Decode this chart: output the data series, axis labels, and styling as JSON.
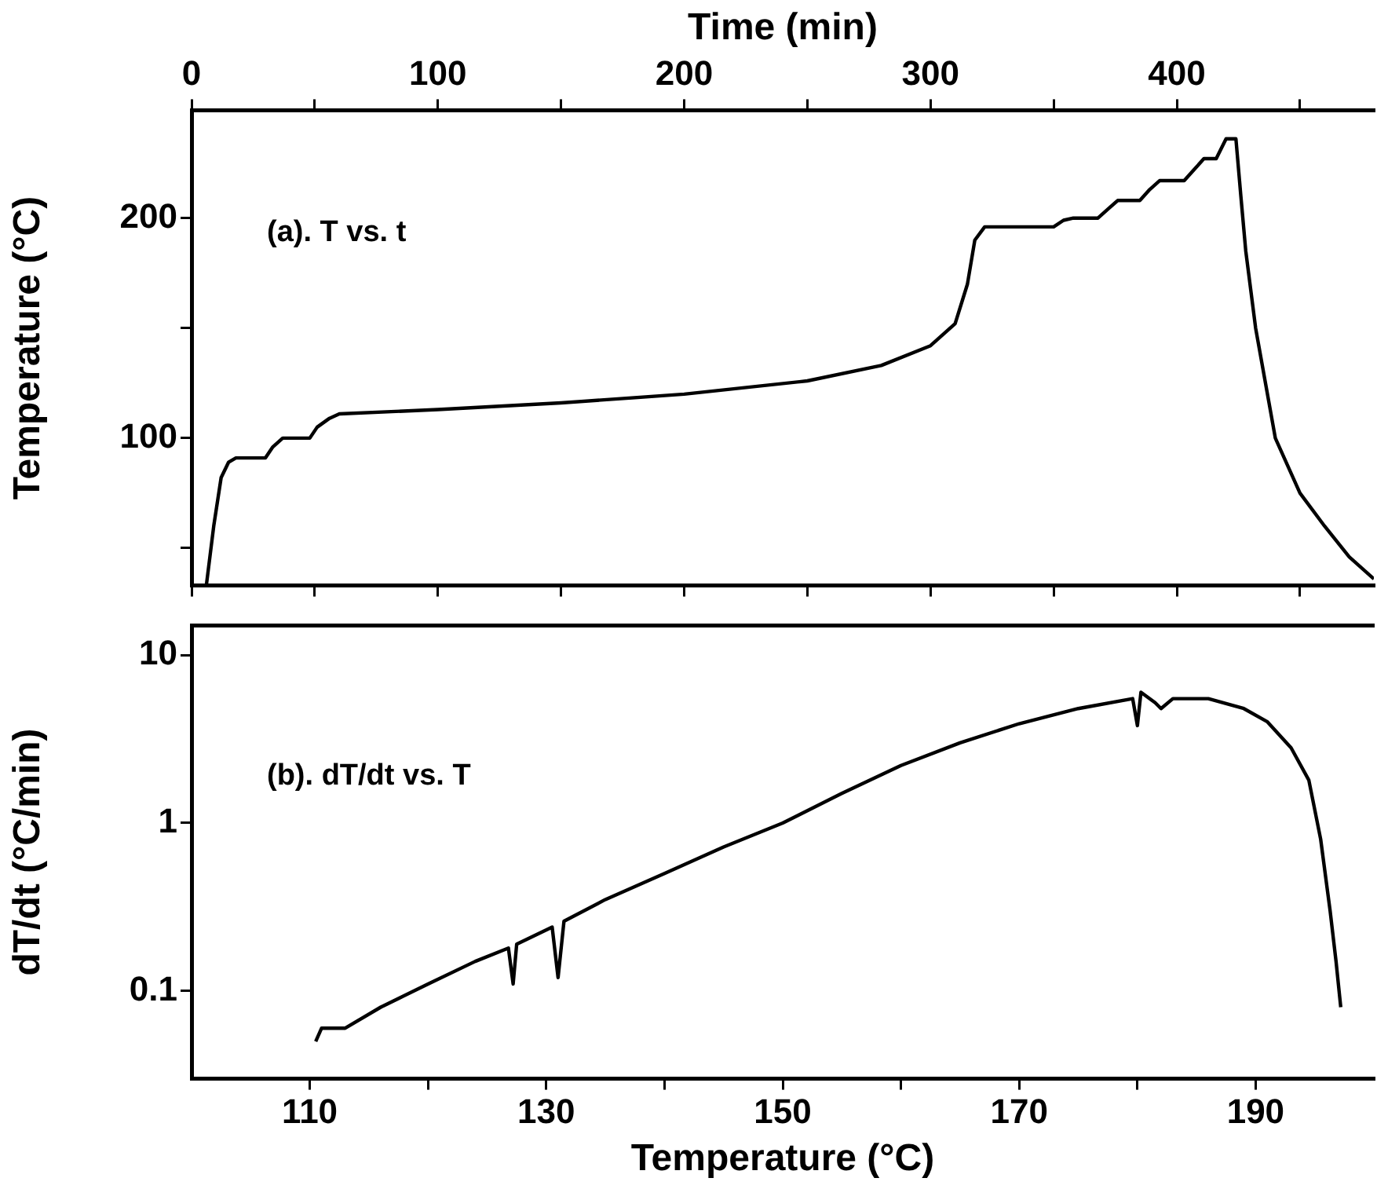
{
  "chart_data": [
    {
      "type": "line",
      "xlabel": "Time (min)",
      "ylabel": "Temperature (°C)",
      "annotations": [
        "(a). T vs. t"
      ],
      "xlim": [
        0,
        480
      ],
      "xticks": [
        0,
        {
          "value": 50,
          "label": null
        },
        100,
        {
          "value": 150,
          "label": null
        },
        200,
        {
          "value": 250,
          "label": null
        },
        300,
        {
          "value": 350,
          "label": null
        },
        400,
        {
          "value": 450,
          "label": null
        }
      ],
      "ylim": [
        33,
        249
      ],
      "yticks": [
        {
          "value": 50,
          "label": null
        },
        100,
        {
          "value": 150,
          "label": null
        },
        200
      ],
      "grid": false,
      "legend": false,
      "marker": "none",
      "line_style": "solid",
      "series": [
        {
          "color": "#000000",
          "x": [
            6,
            9,
            12,
            15,
            18,
            30,
            33,
            37,
            48,
            51,
            56,
            60,
            100,
            150,
            200,
            250,
            280,
            300,
            310,
            315,
            318,
            322,
            350,
            354,
            358,
            368,
            372,
            376,
            385,
            389,
            393,
            403,
            407,
            411,
            416,
            420,
            424,
            426,
            428,
            432,
            440,
            450,
            460,
            470,
            480
          ],
          "values": [
            33,
            60,
            82,
            89,
            91,
            91,
            96,
            100,
            100,
            105,
            109,
            111,
            113,
            116,
            120,
            126,
            133,
            142,
            152,
            170,
            190,
            196,
            196,
            199,
            200,
            200,
            204,
            208,
            208,
            213,
            217,
            217,
            222,
            227,
            227,
            236,
            236,
            210,
            185,
            150,
            100,
            75,
            60,
            46,
            36
          ]
        }
      ]
    },
    {
      "type": "line",
      "xlabel": "Temperature (°C)",
      "ylabel": "dT/dt (°C/min)",
      "annotations": [
        "(b). dT/dt vs. T"
      ],
      "log": "y",
      "xlim": [
        100,
        200
      ],
      "xticks": [
        110,
        {
          "value": 120,
          "label": null
        },
        130,
        {
          "value": 140,
          "label": null
        },
        150,
        {
          "value": 160,
          "label": null
        },
        170,
        {
          "value": 180,
          "label": null
        },
        190
      ],
      "ylim": [
        0.03,
        15
      ],
      "yticks": [
        0.1,
        1,
        10
      ],
      "grid": false,
      "legend": false,
      "marker": "none",
      "line_style": "solid",
      "series": [
        {
          "color": "#000000",
          "x": [
            110.5,
            111,
            113,
            116,
            120,
            124,
            126.8,
            127.2,
            127.5,
            130.5,
            131,
            131.5,
            135,
            140,
            145,
            150,
            155,
            160,
            165,
            170,
            175,
            179.6,
            180,
            180.3,
            181.5,
            182,
            183,
            186,
            189,
            191,
            193,
            194.5,
            195.5,
            196.3,
            196.8,
            197.2
          ],
          "values": [
            0.05,
            0.06,
            0.06,
            0.08,
            0.11,
            0.15,
            0.18,
            0.11,
            0.19,
            0.24,
            0.12,
            0.26,
            0.35,
            0.5,
            0.72,
            1.0,
            1.5,
            2.2,
            3.0,
            3.9,
            4.8,
            5.5,
            3.8,
            6,
            5.2,
            4.8,
            5.5,
            5.5,
            4.8,
            4,
            2.8,
            1.8,
            0.8,
            0.3,
            0.15,
            0.08
          ]
        }
      ]
    }
  ]
}
